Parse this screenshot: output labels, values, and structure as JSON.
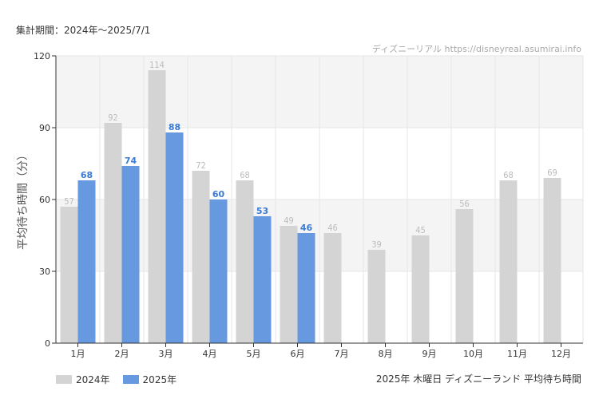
{
  "header": {
    "period": "集計期間：2024年～2025/7/1",
    "credit": "ディズニーリアル https://disneyreal.asumirai.info"
  },
  "caption": "2025年 木曜日 ディズニーランド 平均待ち時間",
  "colors": {
    "s2024": "#d4d4d4",
    "s2025": "#6699e0",
    "band": "#f4f4f4",
    "grid": "#e6e6e6",
    "axis": "#333333"
  },
  "chart_data": {
    "type": "bar",
    "title": "2025年 木曜日 ディズニーランド 平均待ち時間",
    "xlabel": "",
    "ylabel": "平均待ち時間（分）",
    "ylim": [
      0,
      120
    ],
    "yticks": [
      0,
      30,
      60,
      90,
      120
    ],
    "categories": [
      "1月",
      "2月",
      "3月",
      "4月",
      "5月",
      "6月",
      "7月",
      "8月",
      "9月",
      "10月",
      "11月",
      "12月"
    ],
    "series": [
      {
        "name": "2024年",
        "values": [
          57,
          92,
          114,
          72,
          68,
          49,
          46,
          39,
          45,
          56,
          68,
          69
        ]
      },
      {
        "name": "2025年",
        "values": [
          68,
          74,
          88,
          60,
          53,
          46,
          null,
          null,
          null,
          null,
          null,
          null
        ]
      }
    ],
    "legend": "bottom-left",
    "grid": true
  }
}
